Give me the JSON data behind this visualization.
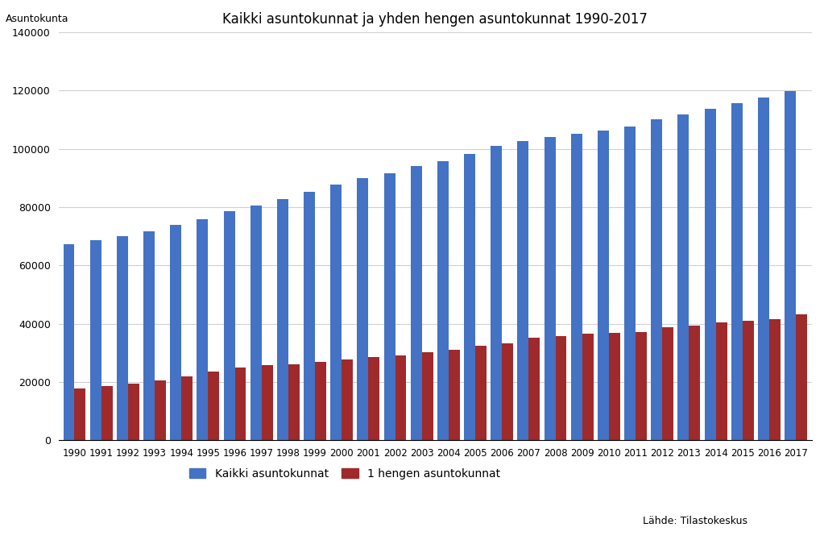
{
  "title": "Kaikki asuntokunnat ja yhden hengen asuntokunnat 1990-2017",
  "ylabel": "Asuntokunta",
  "source_label": "Lähde: Tilastokeskus",
  "years": [
    1990,
    1991,
    1992,
    1993,
    1994,
    1995,
    1996,
    1997,
    1998,
    1999,
    2000,
    2001,
    2002,
    2003,
    2004,
    2005,
    2006,
    2007,
    2008,
    2009,
    2010,
    2011,
    2012,
    2013,
    2014,
    2015,
    2016,
    2017
  ],
  "all_households": [
    67200,
    68700,
    70200,
    71800,
    73900,
    75900,
    78700,
    80700,
    82900,
    85200,
    87700,
    90000,
    91600,
    94200,
    95800,
    98200,
    101000,
    102800,
    104000,
    105200,
    106200,
    107800,
    110100,
    111800,
    113700,
    115600,
    117500,
    119963
  ],
  "single_households": [
    17700,
    18700,
    19500,
    20700,
    22100,
    23700,
    24900,
    25700,
    26100,
    27000,
    27700,
    28700,
    29200,
    30200,
    31100,
    32600,
    33300,
    35200,
    35700,
    36700,
    36900,
    37200,
    38700,
    39300,
    40400,
    41000,
    41700,
    43187
  ],
  "color_all": "#4472C4",
  "color_single": "#9E2A2B",
  "ylim": [
    0,
    140000
  ],
  "yticks": [
    0,
    20000,
    40000,
    60000,
    80000,
    100000,
    120000,
    140000
  ],
  "legend_all": "Kaikki asuntokunnat",
  "legend_single": "1 hengen asuntokunnat",
  "background_color": "#FFFFFF",
  "bar_width": 0.42
}
